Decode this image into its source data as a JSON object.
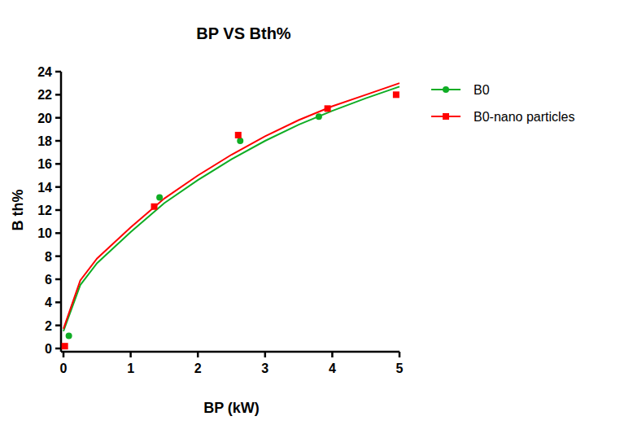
{
  "chart_data": {
    "type": "scatter",
    "title": "BP VS Bth%",
    "x_label": "BP (kW)",
    "y_label": "B th%",
    "xlim": [
      0,
      5
    ],
    "ylim": [
      0,
      24
    ],
    "xticks": [
      0,
      1,
      2,
      3,
      4,
      5
    ],
    "yticks": [
      0,
      2,
      4,
      6,
      8,
      10,
      12,
      14,
      16,
      18,
      20,
      22,
      24
    ],
    "grid": false,
    "legend": "right",
    "series": [
      {
        "name": "B0",
        "color": "#0fad24",
        "marker": "circle",
        "line_style": "solid",
        "x": [
          0.08,
          1.43,
          2.63,
          3.8
        ],
        "values": [
          1.1,
          13.1,
          18.0,
          20.1
        ],
        "fit_x": [
          0,
          0.25,
          0.5,
          1,
          1.5,
          2,
          2.5,
          3,
          3.5,
          4,
          4.5,
          5
        ],
        "fit_values": [
          1.5,
          5.5,
          7.4,
          10.1,
          12.6,
          14.6,
          16.4,
          18.0,
          19.4,
          20.6,
          21.7,
          22.7
        ]
      },
      {
        "name": "B0-nano particles",
        "color": "#ff0000",
        "marker": "square",
        "line_style": "solid",
        "x": [
          0.02,
          1.35,
          2.6,
          3.93,
          4.95
        ],
        "values": [
          0.2,
          12.3,
          18.5,
          20.8,
          22.0
        ],
        "fit_x": [
          0,
          0.25,
          0.5,
          1,
          1.5,
          2,
          2.5,
          3,
          3.5,
          4,
          4.5,
          5
        ],
        "fit_values": [
          1.7,
          5.9,
          7.8,
          10.5,
          13.0,
          15.0,
          16.8,
          18.4,
          19.8,
          21.0,
          22.0,
          23.0
        ]
      }
    ]
  }
}
